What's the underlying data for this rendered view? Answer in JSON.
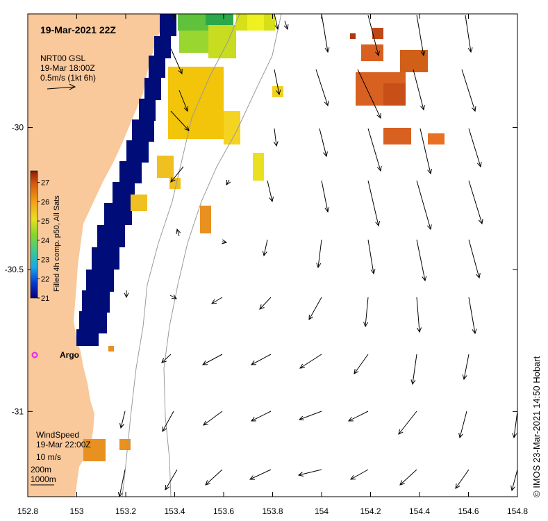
{
  "map": {
    "title": "19-Mar-2021 22Z",
    "current_block": {
      "line1": "NRT00 GSL",
      "line2": "19-Mar 18:00Z",
      "line3": "0.5m/s (1kt 6h)"
    },
    "wind_block": {
      "line1": "WindSpeed",
      "line2": "19-Mar 22:00Z",
      "line3": "10 m/s"
    },
    "contours": [
      "200m",
      "1000m"
    ],
    "argo_label": "Argo",
    "credit": "© IMOS 23-Mar-2021 14:50 Hobart",
    "x_axis": {
      "ticks": [
        "152.8",
        "153",
        "153.2",
        "153.4",
        "153.6",
        "153.8",
        "154",
        "154.2",
        "154.4",
        "154.6",
        "154.8"
      ],
      "range": [
        152.8,
        154.8
      ]
    },
    "y_axis": {
      "ticks": [
        "-30",
        "-30.5",
        "-31"
      ],
      "values": [
        -30,
        -30.5,
        -31
      ],
      "range": [
        -31.3,
        -29.6
      ]
    },
    "colorbar": {
      "title": "Filled 4h comp. p50, All Sats",
      "ticks": [
        "21",
        "22",
        "23",
        "24",
        "25",
        "26",
        "27"
      ],
      "range": [
        21,
        27.6
      ]
    },
    "colors": {
      "land": "#f9c89b",
      "ocean": "#ffffff",
      "cold_sst": "#000d78",
      "warm_sst": "#d85f18",
      "mid_sst": "#f2c40a",
      "green_sst": "#5fc23a",
      "argo": "#ee22ee",
      "contour": "#9a9a9a"
    }
  }
}
